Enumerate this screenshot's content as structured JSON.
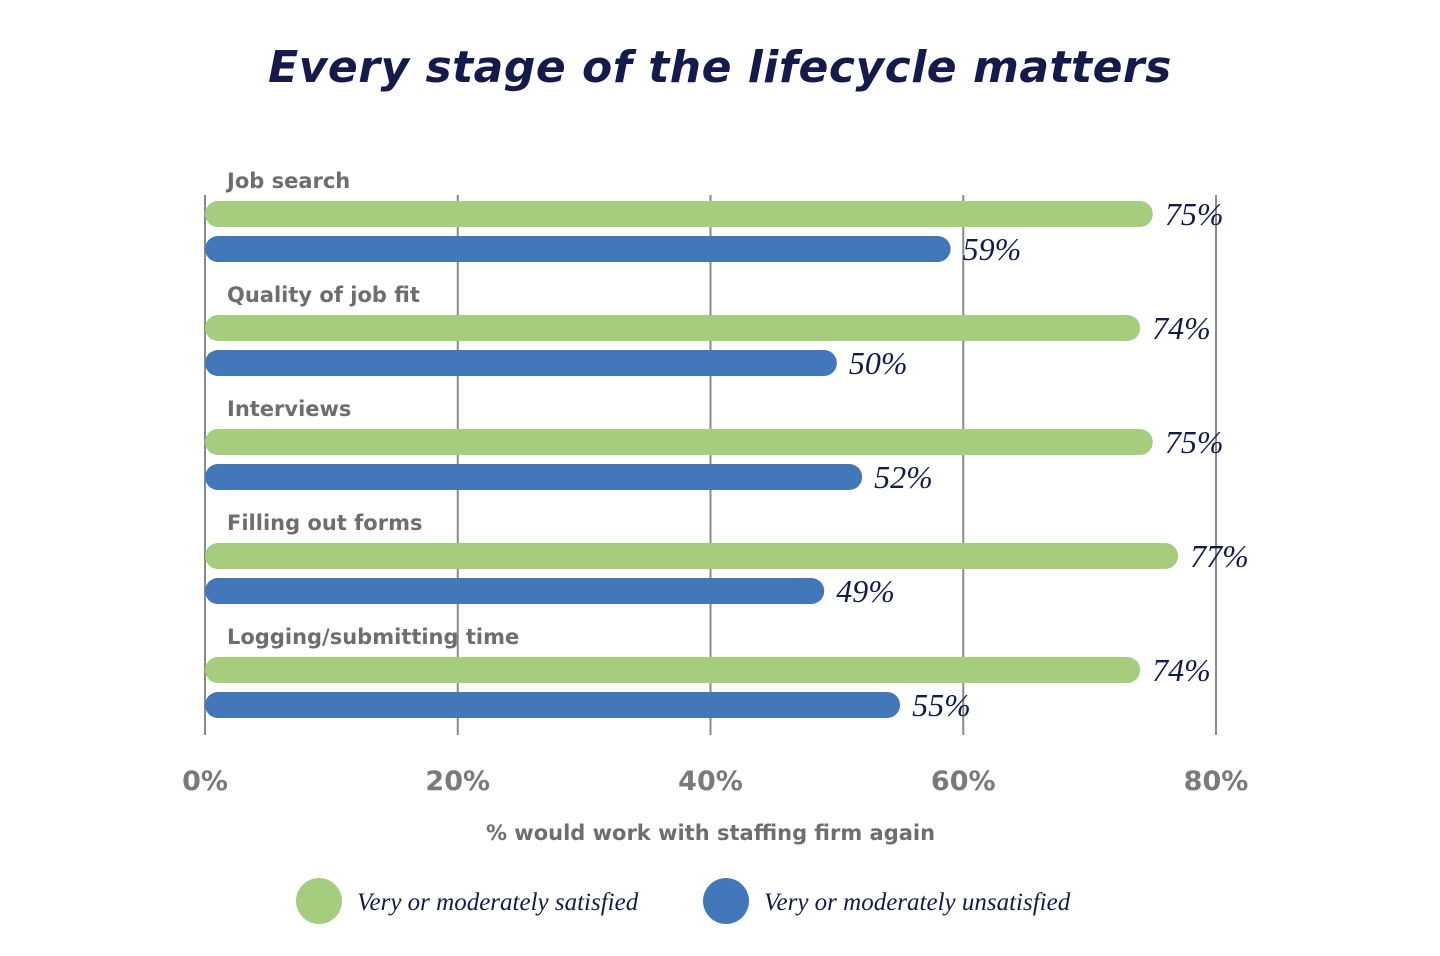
{
  "chart_data": {
    "type": "bar",
    "orientation": "horizontal",
    "title": "Every stage of the lifecycle matters",
    "xlabel": "% would work with staffing firm again",
    "xlim": [
      0,
      80
    ],
    "xticks": [
      0,
      20,
      40,
      60,
      80
    ],
    "xtick_labels": [
      "0%",
      "20%",
      "40%",
      "60%",
      "80%"
    ],
    "grid": true,
    "categories": [
      "Job search",
      "Quality of job fit",
      "Interviews",
      "Filling out forms",
      "Logging/submitting time"
    ],
    "series": [
      {
        "name": "Very or moderately satisfied",
        "color": "#a5cd7d",
        "values": [
          75,
          74,
          75,
          77,
          74
        ],
        "labels": [
          "75%",
          "74%",
          "75%",
          "77%",
          "74%"
        ]
      },
      {
        "name": "Very or moderately unsatisfied",
        "color": "#4277b9",
        "values": [
          59,
          50,
          52,
          49,
          55
        ],
        "labels": [
          "59%",
          "50%",
          "52%",
          "49%",
          "55%"
        ]
      }
    ],
    "legend_position": "bottom"
  }
}
